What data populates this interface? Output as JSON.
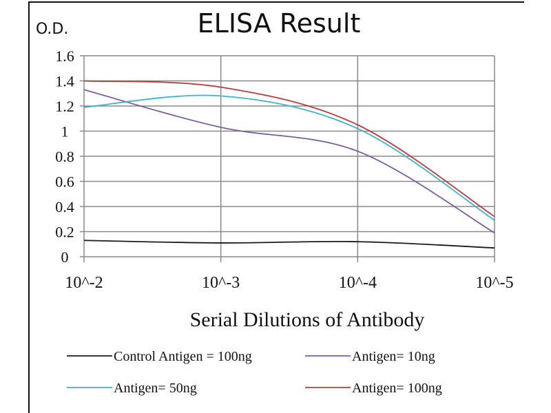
{
  "chart_data": {
    "type": "line",
    "title": "ELISA Result",
    "ylabel": "O.D.",
    "xlabel": "Serial Dilutions  of Antibody",
    "categories": [
      "10^-2",
      "10^-3",
      "10^-4",
      "10^-5"
    ],
    "ylim": [
      0,
      1.6
    ],
    "yticks": [
      "0",
      "0.2",
      "0.4",
      "0.6",
      "0.8",
      "1",
      "1.2",
      "1.4",
      "1.6"
    ],
    "grid": true,
    "legend_position": "bottom",
    "series": [
      {
        "name": "Control Antigen = 100ng",
        "color": "#1a1a1a",
        "values": [
          0.13,
          0.11,
          0.12,
          0.07
        ]
      },
      {
        "name": "Antigen= 10ng",
        "color": "#7a5aa0",
        "values": [
          1.33,
          1.03,
          0.84,
          0.19
        ]
      },
      {
        "name": "Antigen= 50ng",
        "color": "#3ab4d0",
        "values": [
          1.19,
          1.28,
          1.02,
          0.29
        ]
      },
      {
        "name": "Antigen= 100ng",
        "color": "#c03a3a",
        "values": [
          1.4,
          1.35,
          1.05,
          0.32
        ]
      }
    ]
  }
}
